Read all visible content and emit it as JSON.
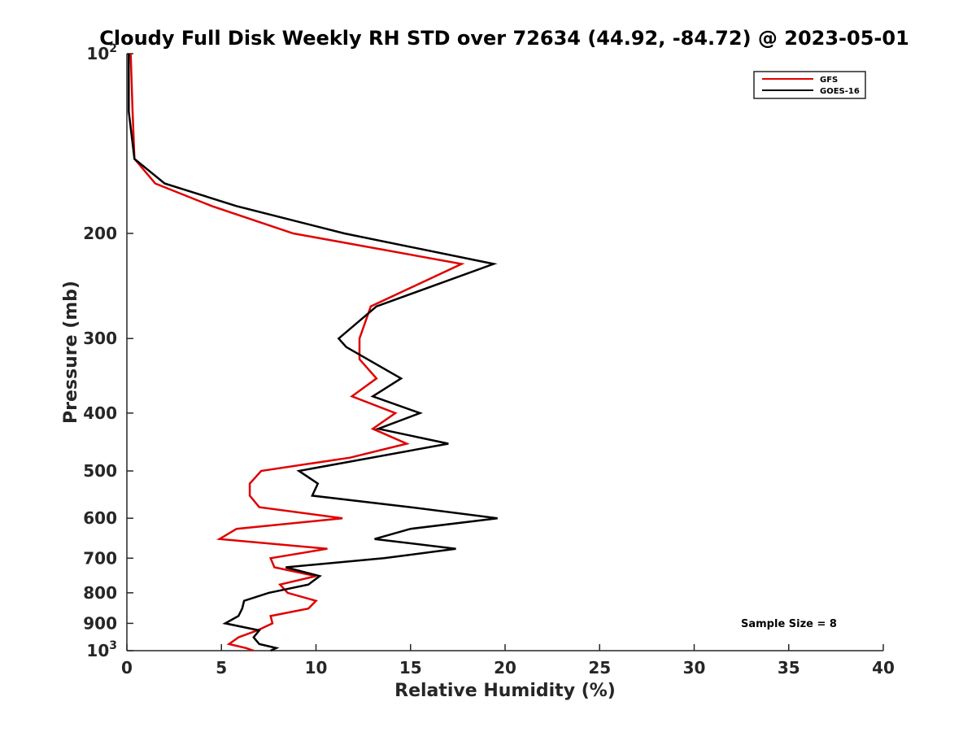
{
  "chart_data": {
    "type": "line",
    "title": "Cloudy Full Disk Weekly RH STD over 72634 (44.92, -84.72) @ 2023-05-01",
    "xlabel": "Relative Humidity (%)",
    "ylabel": "Pressure (mb)",
    "xlim": [
      0,
      40
    ],
    "ylim": [
      100,
      1000
    ],
    "yscale": "log",
    "y_reversed": true,
    "grid": false,
    "legend_position": "top-right",
    "x_ticks": [
      "0",
      "5",
      "10",
      "15",
      "20",
      "25",
      "30",
      "35",
      "40"
    ],
    "y_ticks": [
      {
        "value": 100,
        "base": "10",
        "exp": "2"
      },
      {
        "value": 200,
        "label": "200"
      },
      {
        "value": 300,
        "label": "300"
      },
      {
        "value": 400,
        "label": "400"
      },
      {
        "value": 500,
        "label": "500"
      },
      {
        "value": 600,
        "label": "600"
      },
      {
        "value": 700,
        "label": "700"
      },
      {
        "value": 800,
        "label": "800"
      },
      {
        "value": 900,
        "label": "900"
      },
      {
        "value": 1000,
        "base": "10",
        "exp": "3"
      }
    ],
    "annotation": "Sample Size = 8",
    "series": [
      {
        "name": "GFS",
        "color": "#e00000",
        "points": [
          [
            0.2,
            100
          ],
          [
            0.3,
            125
          ],
          [
            0.4,
            150
          ],
          [
            1.5,
            165
          ],
          [
            4.5,
            180
          ],
          [
            8.8,
            200
          ],
          [
            17.7,
            225
          ],
          [
            12.9,
            265
          ],
          [
            12.3,
            300
          ],
          [
            12.3,
            325
          ],
          [
            13.2,
            350
          ],
          [
            11.9,
            375
          ],
          [
            14.2,
            400
          ],
          [
            14.2,
            400
          ],
          [
            13.0,
            425
          ],
          [
            14.8,
            450
          ],
          [
            11.8,
            475
          ],
          [
            7.1,
            500
          ],
          [
            6.5,
            525
          ],
          [
            6.5,
            550
          ],
          [
            7.0,
            575
          ],
          [
            11.4,
            600
          ],
          [
            5.8,
            625
          ],
          [
            4.9,
            650
          ],
          [
            10.6,
            675
          ],
          [
            7.6,
            700
          ],
          [
            7.8,
            725
          ],
          [
            10.0,
            750
          ],
          [
            8.1,
            775
          ],
          [
            8.5,
            800
          ],
          [
            10.0,
            825
          ],
          [
            9.6,
            850
          ],
          [
            7.6,
            875
          ],
          [
            7.7,
            900
          ],
          [
            6.9,
            925
          ],
          [
            5.9,
            950
          ],
          [
            5.4,
            975
          ],
          [
            6.3,
            990
          ],
          [
            6.7,
            1000
          ]
        ]
      },
      {
        "name": "GOES-16",
        "color": "#000000",
        "points": [
          [
            0.1,
            100
          ],
          [
            0.1,
            125
          ],
          [
            0.4,
            150
          ],
          [
            2.0,
            165
          ],
          [
            5.8,
            180
          ],
          [
            11.5,
            200
          ],
          [
            19.4,
            225
          ],
          [
            13.2,
            265
          ],
          [
            11.2,
            300
          ],
          [
            11.6,
            310
          ],
          [
            14.5,
            350
          ],
          [
            13.0,
            375
          ],
          [
            15.5,
            400
          ],
          [
            13.3,
            425
          ],
          [
            17.0,
            450
          ],
          [
            9.1,
            500
          ],
          [
            10.1,
            525
          ],
          [
            9.8,
            550
          ],
          [
            15.0,
            575
          ],
          [
            19.6,
            600
          ],
          [
            15.0,
            625
          ],
          [
            13.1,
            650
          ],
          [
            17.4,
            675
          ],
          [
            13.6,
            700
          ],
          [
            8.4,
            725
          ],
          [
            10.2,
            750
          ],
          [
            9.6,
            775
          ],
          [
            7.5,
            800
          ],
          [
            6.2,
            825
          ],
          [
            6.1,
            850
          ],
          [
            5.9,
            875
          ],
          [
            5.2,
            900
          ],
          [
            7.0,
            925
          ],
          [
            6.7,
            950
          ],
          [
            7.0,
            975
          ],
          [
            7.9,
            990
          ],
          [
            7.6,
            1000
          ]
        ]
      }
    ]
  }
}
